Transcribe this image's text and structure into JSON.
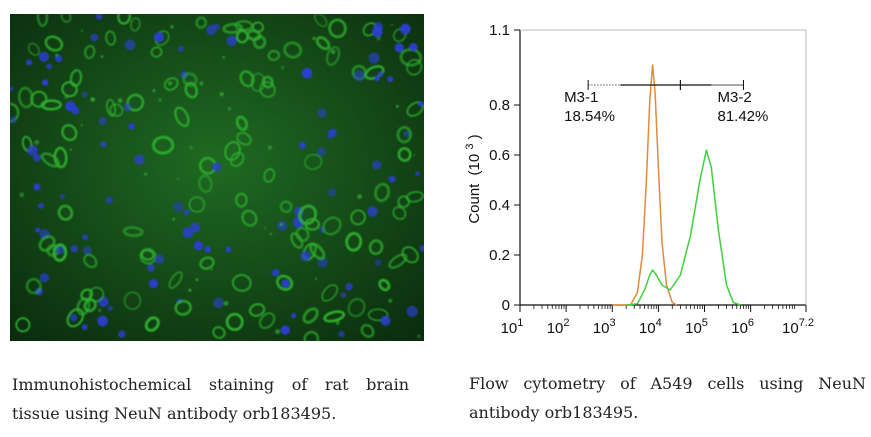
{
  "left_panel": {
    "image_alt": "Immunofluorescence micrograph of rat brain tissue",
    "colors": {
      "background": "#0f3a12",
      "neuron_green": "#2fb02f",
      "nuclei_blue": "#2b3fd0"
    }
  },
  "left_caption": "Immunohistochemical staining of rat brain tissue using NeuN antibody orb183495.",
  "right_caption": "Flow cytometry of A549 cells using NeuN antibody orb183495.",
  "chart_data": {
    "type": "line",
    "x_scale": "log",
    "xlim": [
      10,
      15848931.92
    ],
    "ylim": [
      0,
      1.1
    ],
    "ylabel": "Count",
    "ylabel_unit": "(10",
    "ylabel_exp": "3",
    "ylabel_close": ")",
    "y_ticks": [
      "0",
      "0.2",
      "0.4",
      "0.6",
      "0.8",
      "1.1"
    ],
    "y_tick_values": [
      0,
      0.2,
      0.4,
      0.6,
      0.8,
      1.1
    ],
    "x_ticks": [
      {
        "base": "10",
        "exp": "1",
        "value": 10
      },
      {
        "base": "10",
        "exp": "2",
        "value": 100
      },
      {
        "base": "10",
        "exp": "3",
        "value": 1000
      },
      {
        "base": "10",
        "exp": "4",
        "value": 10000
      },
      {
        "base": "10",
        "exp": "5",
        "value": 100000
      },
      {
        "base": "10",
        "exp": "6",
        "value": 1000000
      },
      {
        "base": "10",
        "exp": "7.2",
        "value": 15848931.92
      }
    ],
    "series": [
      {
        "color": "#e08a3c",
        "points": [
          [
            1000,
            0
          ],
          [
            2500,
            0.0
          ],
          [
            3500,
            0.05
          ],
          [
            4500,
            0.2
          ],
          [
            5500,
            0.5
          ],
          [
            6500,
            0.82
          ],
          [
            7500,
            0.96
          ],
          [
            8500,
            0.85
          ],
          [
            10000,
            0.55
          ],
          [
            12000,
            0.25
          ],
          [
            15000,
            0.08
          ],
          [
            20000,
            0.01
          ],
          [
            25000,
            0
          ]
        ]
      },
      {
        "color": "#3fcf3f",
        "points": [
          [
            2000,
            0
          ],
          [
            3500,
            0.005
          ],
          [
            5000,
            0.06
          ],
          [
            6500,
            0.12
          ],
          [
            7500,
            0.14
          ],
          [
            9000,
            0.12
          ],
          [
            12000,
            0.08
          ],
          [
            18000,
            0.06
          ],
          [
            30000,
            0.12
          ],
          [
            50000,
            0.28
          ],
          [
            80000,
            0.5
          ],
          [
            110000,
            0.62
          ],
          [
            140000,
            0.55
          ],
          [
            200000,
            0.3
          ],
          [
            300000,
            0.08
          ],
          [
            420000,
            0.01
          ],
          [
            600000,
            0
          ]
        ]
      }
    ],
    "gates": [
      {
        "name": "M3-1",
        "percent": "18.54%",
        "from": 300,
        "to": 30000,
        "y": 0.88
      },
      {
        "name": "M3-2",
        "percent": "81.42%",
        "from": 30000,
        "to": 700000,
        "y": 0.88
      }
    ]
  }
}
